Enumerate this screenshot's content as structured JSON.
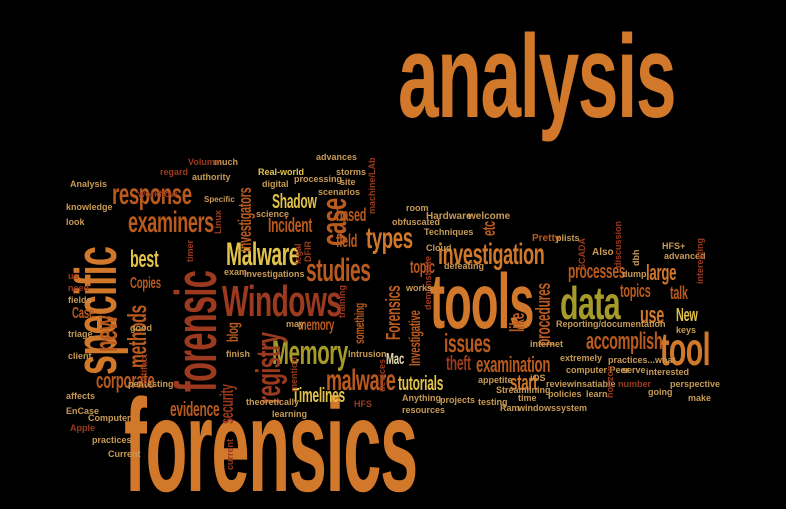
{
  "colors": {
    "background": "#000000",
    "orange": "#d2782a",
    "dark_orange": "#b95a1e",
    "red_brown": "#9c3a1f",
    "yellow": "#e2c34a",
    "olive": "#a59a2a",
    "tan": "#c79a55",
    "cream": "#e6d8b0"
  },
  "words": {
    "analysis": "analysis",
    "forensics": "forensics",
    "tools": "tools",
    "specific": "specific",
    "forensic": "forensic",
    "windows_big": "Windows",
    "data": "data",
    "tool": "tool",
    "memory_big": "Memory",
    "malware_big": "Malware",
    "registry": "registry",
    "response": "response",
    "examiners": "examiners",
    "investigation": "investigation",
    "case_big": "case",
    "studies": "studies",
    "malware": "malware",
    "types": "types",
    "new": "new",
    "methods": "methods",
    "best": "best",
    "corporate": "corporate",
    "evidence": "evidence",
    "security": "security",
    "timelines": "Timelines",
    "examination": "examination",
    "accomplish": "accomplish",
    "processes": "processes",
    "issues": "issues",
    "procedures": "procedures",
    "start": "start",
    "theft": "theft",
    "tutorials": "tutorials",
    "use": "use",
    "large": "large",
    "topics": "topics",
    "talk": "talk",
    "new2": "New",
    "shadow": "Shadow",
    "incident": "Incident",
    "investigators": "investigators",
    "based": "based",
    "field": "field",
    "topic": "topic",
    "forensics_small": "Forensics",
    "investigative": "Investigative",
    "like": "like",
    "etc": "etc",
    "mac": "Mac",
    "memory_small": "memory",
    "blog": "blog",
    "copies": "Copies",
    "case_small": "Case",
    "something": "something",
    "realworld": "Real-world",
    "digital": "digital",
    "authority": "authority",
    "specific_small": "Specific",
    "much": "much",
    "volume": "Volume",
    "regard": "regard",
    "workflow": "workflow",
    "analysis_small": "Analysis",
    "knowledge": "knowledge",
    "look": "look",
    "advances": "advances",
    "processing": "processing",
    "storms": "storms",
    "site": "site",
    "scenarios": "scenarios",
    "science": "science",
    "obfuscated": "obfuscated",
    "hardware": "Hardware",
    "welcome": "welcome",
    "techniques": "Techniques",
    "defeating": "defeating",
    "pretty": "Pretty",
    "plists": "plists",
    "also": "Also",
    "hfs_plus": "HFS+",
    "advanced": "advanced",
    "room": "room",
    "machine_lab": "machine/LAb",
    "cloud": "Cloud",
    "demonstrate": "demonstrate",
    "works": "works",
    "dump": "dump",
    "dbh": "dbh",
    "scada": "SCADA",
    "discussion": "discussion",
    "interesting": "interesting",
    "reporting": "Reporting/documentation",
    "keys": "keys",
    "practices_what": "practices...what",
    "extremely": "extremely",
    "computer_peer": "computer Peer",
    "internet": "internet",
    "policies": "policies",
    "serve": "serve",
    "interested": "interested",
    "perspective": "perspective",
    "insatiable": "insatiable",
    "learn": "learn",
    "going": "going",
    "make": "make",
    "review": "review",
    "number": "number",
    "horizon": "horizon",
    "ios": "iOS",
    "appetite": "appetite",
    "streamlining": "Streamlining",
    "ram": "Ram",
    "windows_small": "windows",
    "system": "system",
    "time": "time",
    "testing": "testing",
    "projects": "projects",
    "resources": "resources",
    "anything": "Anything",
    "hfs": "HFS",
    "devices": "devices",
    "intrusion": "Intrusion",
    "mention": "mention",
    "theoretically": "theoretically",
    "learning": "learning",
    "finish": "finish",
    "current_v": "current",
    "pentesting": "pentesting",
    "artifact": "artifact",
    "client": "client",
    "affects": "affects",
    "encase": "EnCase",
    "computer": "Computer",
    "apple": "Apple",
    "practices": "practices",
    "current": "Current",
    "triage": "triage",
    "fields": "fields",
    "need": "need",
    "us": "us",
    "good": "good",
    "exam": "exam",
    "investigations": "investigations",
    "dfir": "DFIR",
    "legal": "legal",
    "may": "may",
    "training": "training",
    "linux": "Linux",
    "timer": "timer"
  }
}
